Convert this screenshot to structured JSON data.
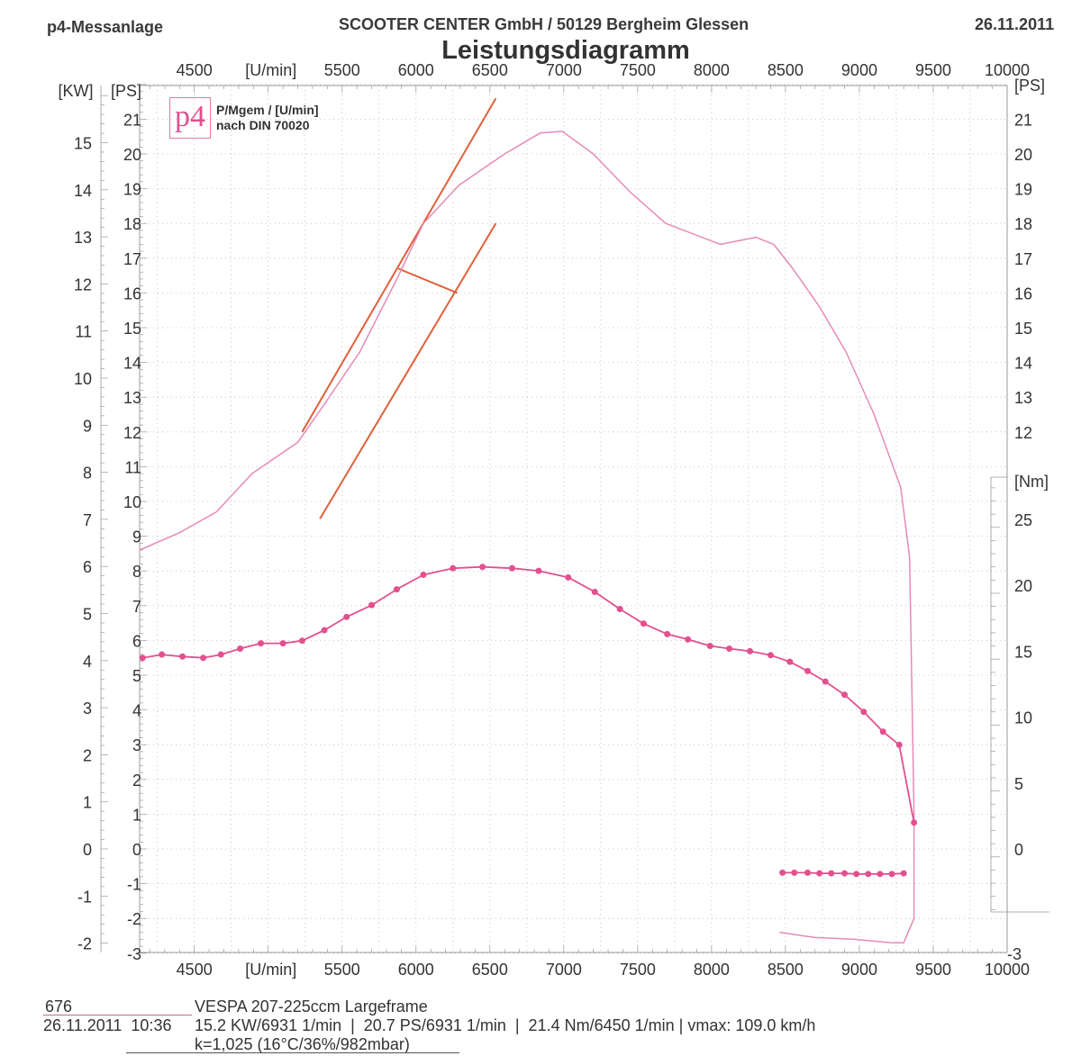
{
  "header": {
    "left": "p4-Messanlage",
    "center": "SCOOTER CENTER GmbH / 50129 Bergheim Glessen",
    "date": "26.11.2011",
    "title": "Leistungsdiagramm"
  },
  "legend": {
    "logo_text": "p4",
    "line1": "P/Mgem / [U/min]",
    "line2": "nach DIN 70020"
  },
  "footer": {
    "run_number": "676",
    "vehicle": "VESPA 207-225ccm Largeframe",
    "datetime": "26.11.2011  10:36",
    "results": "15.2 KW/6931 1/min  |  20.7 PS/6931 1/min  |  21.4 Nm/6450 1/min | vmax: 109.0 km/h",
    "correction": "k=1,025 (16°C/36%/982mbar)"
  },
  "chart_data": {
    "type": "line",
    "title": "Leistungsdiagramm",
    "xlabel": "[U/min]",
    "xlim": [
      4130,
      10000
    ],
    "x_ticks": [
      "4500",
      "[U/min]",
      "5500",
      "6000",
      "6500",
      "7000",
      "7500",
      "8000",
      "8500",
      "9000",
      "9500",
      "10000"
    ],
    "ylabel_left_kw": "[KW]",
    "ylabel_left_ps": "[PS]",
    "ylabel_right_ps": "[PS]",
    "ylabel_right_nm": "[Nm]",
    "ylim_ps": [
      -3,
      22
    ],
    "kw_ticks": [
      -2,
      -1,
      0,
      1,
      2,
      3,
      4,
      5,
      6,
      7,
      8,
      9,
      10,
      11,
      12,
      13,
      14,
      15
    ],
    "ps_ticks_left": [
      -3,
      -2,
      -1,
      0,
      1,
      2,
      3,
      4,
      5,
      6,
      7,
      8,
      9,
      10,
      11,
      12,
      13,
      14,
      15,
      16,
      17,
      18,
      19,
      20,
      21
    ],
    "ps_ticks_right": [
      12,
      13,
      14,
      15,
      16,
      17,
      18,
      19,
      20,
      21
    ],
    "ps_right_bottom": "-3",
    "nm_ticks": [
      0,
      5,
      10,
      15,
      20,
      25
    ],
    "grid": true,
    "series": [
      {
        "name": "Leistung [PS]",
        "color": "#e68ab6",
        "x": [
          4130,
          4400,
          4650,
          4890,
          5200,
          5380,
          5620,
          5870,
          6050,
          6290,
          6600,
          6840,
          6990,
          7200,
          7450,
          7690,
          8060,
          8300,
          8420,
          8550,
          8730,
          8910,
          9100,
          9280,
          9340,
          9370,
          9370
        ],
        "y": [
          8.6,
          9.1,
          9.7,
          10.8,
          11.7,
          12.8,
          14.3,
          16.4,
          18.0,
          19.1,
          20.0,
          20.6,
          20.65,
          20.0,
          18.9,
          18.0,
          17.4,
          17.6,
          17.4,
          16.7,
          15.6,
          14.3,
          12.5,
          10.4,
          8.4,
          1.1,
          -2.0
        ]
      },
      {
        "name": "Leistung Auslauf [PS]",
        "color": "#e68ab6",
        "x": [
          9370,
          9300,
          9220,
          8970,
          8700,
          8460
        ],
        "y": [
          -2.0,
          -2.7,
          -2.7,
          -2.6,
          -2.55,
          -2.4
        ]
      },
      {
        "name": "Drehmoment [Nm]",
        "color": "#e2508f",
        "markers": true,
        "x": [
          4150,
          4280,
          4420,
          4560,
          4680,
          4810,
          4950,
          5100,
          5230,
          5380,
          5530,
          5700,
          5870,
          6050,
          6250,
          6450,
          6650,
          6830,
          7030,
          7210,
          7380,
          7540,
          7700,
          7840,
          7990,
          8120,
          8260,
          8400,
          8530,
          8650,
          8770,
          8900,
          9030,
          9160,
          9270,
          9370
        ],
        "y": [
          14.5,
          14.75,
          14.6,
          14.5,
          14.75,
          15.2,
          15.6,
          15.6,
          15.8,
          16.6,
          17.6,
          18.5,
          19.7,
          20.8,
          21.3,
          21.4,
          21.3,
          21.1,
          20.6,
          19.5,
          18.2,
          17.1,
          16.3,
          15.9,
          15.4,
          15.2,
          15.0,
          14.7,
          14.2,
          13.5,
          12.7,
          11.7,
          10.4,
          8.9,
          7.9,
          2.0
        ]
      },
      {
        "name": "Drehmoment Auslauf [Nm]",
        "color": "#e2508f",
        "markers": true,
        "x": [
          8480,
          8560,
          8650,
          8730,
          8810,
          8900,
          8980,
          9060,
          9140,
          9220,
          9300
        ],
        "y": [
          -1.8,
          -1.8,
          -1.8,
          -1.85,
          -1.85,
          -1.85,
          -1.9,
          -1.9,
          -1.9,
          -1.9,
          -1.85
        ]
      }
    ],
    "annotations": [
      {
        "type": "line",
        "color": "#e0603a",
        "x": [
          5230,
          6540
        ],
        "y_ps": [
          12.0,
          21.6
        ]
      },
      {
        "type": "line",
        "color": "#e0603a",
        "x": [
          5350,
          6540
        ],
        "y_ps": [
          9.5,
          18.0
        ]
      },
      {
        "type": "line",
        "color": "#e0603a",
        "x": [
          5880,
          6280
        ],
        "y_ps": [
          16.7,
          16.0
        ]
      }
    ]
  }
}
